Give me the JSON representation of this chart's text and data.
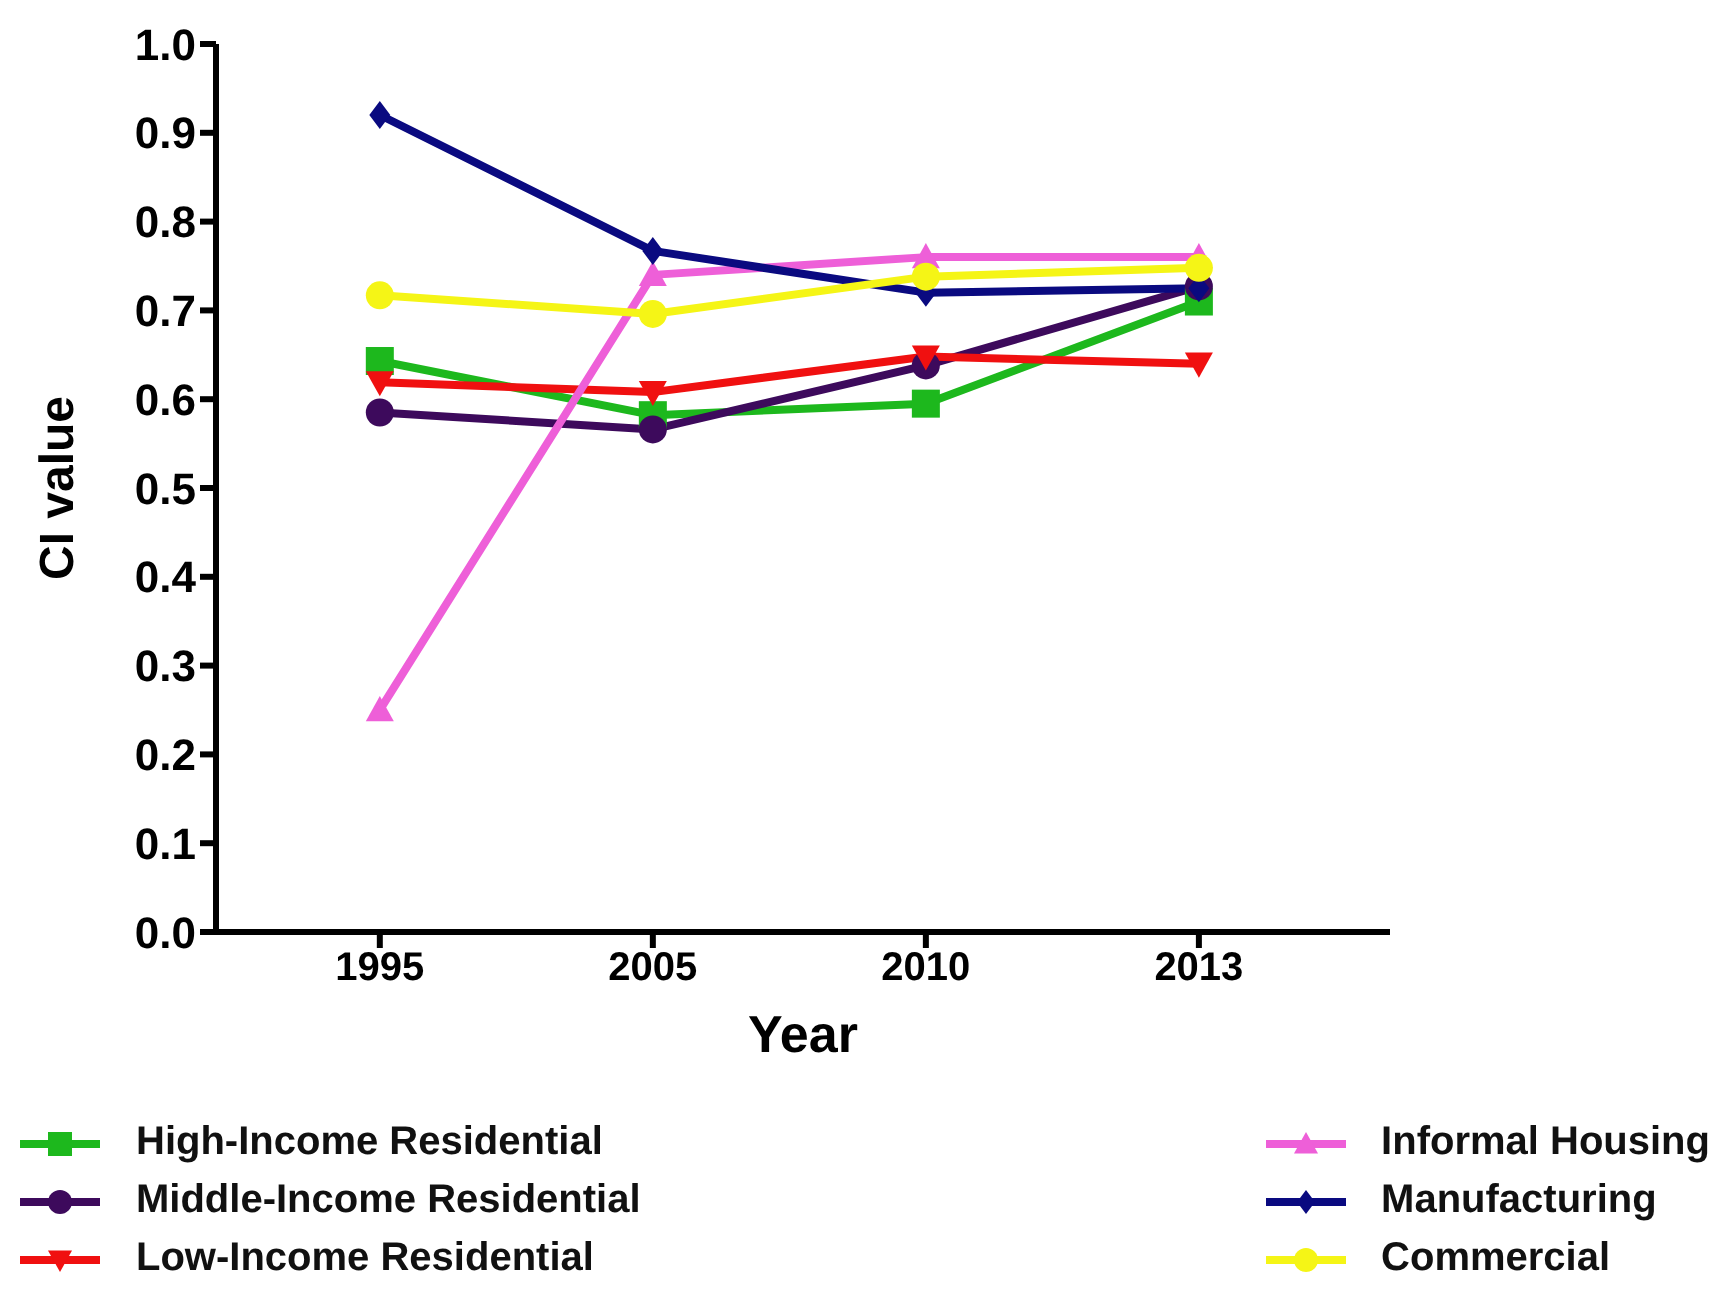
{
  "chart_data": {
    "type": "line",
    "xlabel": "Year",
    "ylabel": "CI value",
    "categories": [
      "1995",
      "2005",
      "2010",
      "2013"
    ],
    "ylim": [
      0,
      1
    ],
    "yticks": [
      {
        "value": 0,
        "label": "0.0"
      },
      {
        "value": 0.1,
        "label": "0.1"
      },
      {
        "value": 0.2,
        "label": "0.2"
      },
      {
        "value": 0.3,
        "label": "0.3"
      },
      {
        "value": 0.4,
        "label": "0.4"
      },
      {
        "value": 0.5,
        "label": "0.5"
      },
      {
        "value": 0.6,
        "label": "0.6"
      },
      {
        "value": 0.7,
        "label": "0.7"
      },
      {
        "value": 0.8,
        "label": "0.8"
      },
      {
        "value": 0.9,
        "label": "0.9"
      },
      {
        "value": 1,
        "label": "1.0"
      }
    ],
    "grid": false,
    "legend": "bottom",
    "series": [
      {
        "name": "High-Income Residential",
        "color": "#1db81d",
        "marker": "square",
        "values": [
          0.643,
          0.582,
          0.595,
          0.71
        ]
      },
      {
        "name": "Middle-Income Residential",
        "color": "#3d0a5c",
        "marker": "circle",
        "values": [
          0.585,
          0.566,
          0.638,
          0.727
        ]
      },
      {
        "name": "Low-Income Residential",
        "color": "#f01010",
        "marker": "triangle-down",
        "values": [
          0.619,
          0.608,
          0.648,
          0.64
        ]
      },
      {
        "name": "Informal Housing",
        "color": "#ee5fd8",
        "marker": "triangle",
        "values": [
          0.25,
          0.74,
          0.76,
          0.76
        ]
      },
      {
        "name": "Manufacturing",
        "color": "#0a0a80",
        "marker": "diamond",
        "values": [
          0.92,
          0.767,
          0.72,
          0.725
        ]
      },
      {
        "name": "Commercial",
        "color": "#f5f516",
        "marker": "circle",
        "values": [
          0.717,
          0.696,
          0.738,
          0.748
        ]
      }
    ]
  }
}
